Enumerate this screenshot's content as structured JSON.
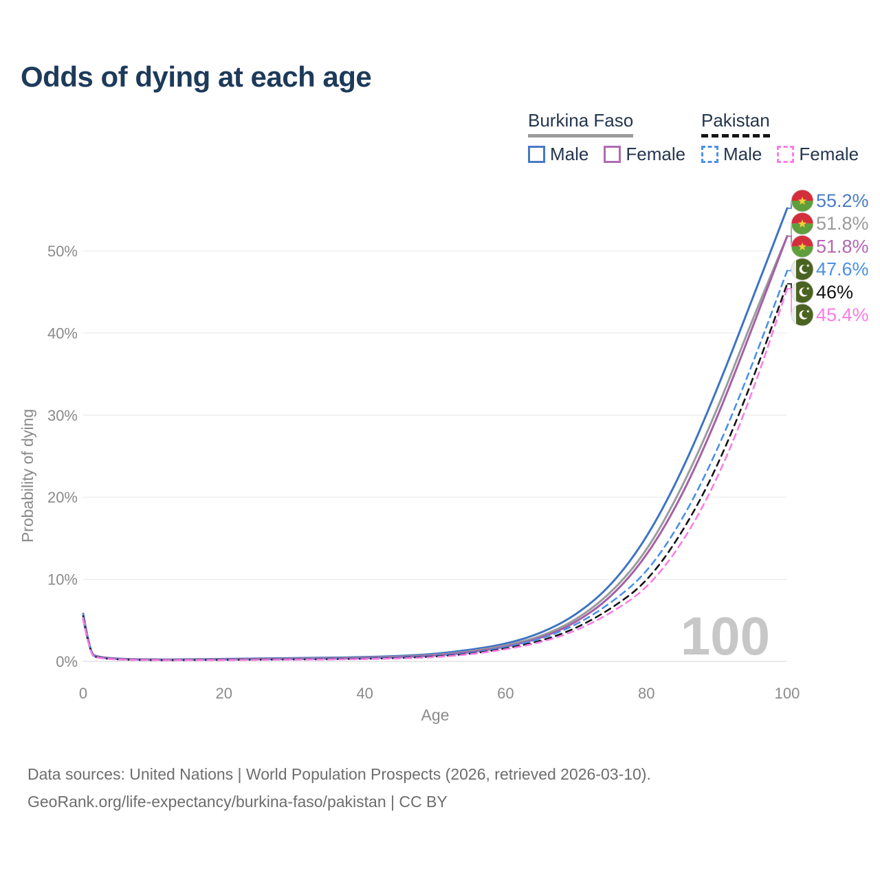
{
  "title": "Odds of dying at each age",
  "watermark_age": "100",
  "legend": {
    "groups": [
      {
        "name": "Burkina Faso",
        "line_style": "solid",
        "line_color": "#9b9b9b",
        "items": [
          {
            "label": "Male",
            "color": "#4779c4",
            "box_style": "solid"
          },
          {
            "label": "Female",
            "color": "#b26bb2",
            "box_style": "solid"
          }
        ]
      },
      {
        "name": "Pakistan",
        "line_style": "dashed",
        "line_color": "#151515",
        "items": [
          {
            "label": "Male",
            "color": "#4a90e8",
            "box_style": "dashed"
          },
          {
            "label": "Female",
            "color": "#fc7ce8",
            "box_style": "dashed"
          }
        ]
      }
    ]
  },
  "footer": {
    "line1": "Data sources: United Nations | World Population Prospects (2026, retrieved 2026-03-10).",
    "line2": "GeoRank.org/life-expectancy/burkina-faso/pakistan | CC BY"
  },
  "flags": {
    "burkina-faso": {
      "red": "#d42e3c",
      "green": "#5f9e3c",
      "star": "#f2ce3b"
    },
    "pakistan": {
      "green": "#4a6320",
      "strip": "#ededed",
      "crescent": "#ffffff"
    }
  },
  "chart_data": {
    "type": "line",
    "title": "Odds of dying at each age",
    "xlabel": "Age",
    "ylabel": "Probability of dying",
    "xlim": [
      0,
      100
    ],
    "ylim": [
      0,
      57
    ],
    "xticks": [
      0,
      20,
      40,
      60,
      80,
      100
    ],
    "yticks": [
      0,
      10,
      20,
      30,
      40,
      50
    ],
    "ytick_suffix": "%",
    "grid": true,
    "legend_position": "top-right",
    "x": [
      0,
      1,
      2,
      5,
      10,
      15,
      20,
      25,
      30,
      35,
      40,
      45,
      50,
      55,
      60,
      65,
      70,
      75,
      80,
      85,
      90,
      95,
      100
    ],
    "series": [
      {
        "id": "burkina-faso-male",
        "name": "Burkina Faso — Male",
        "flag": "burkina-faso",
        "color": "#3e74c2",
        "dash": false,
        "end_label": "55.2%",
        "label_color": "#4a7bc8",
        "values": [
          5.8,
          1.0,
          0.55,
          0.3,
          0.22,
          0.25,
          0.3,
          0.35,
          0.4,
          0.45,
          0.52,
          0.65,
          0.9,
          1.4,
          2.1,
          3.4,
          5.6,
          9.2,
          14.9,
          23,
          33,
          44,
          55.2
        ]
      },
      {
        "id": "burkina-faso-all",
        "name": "Burkina Faso — Both sexes",
        "flag": "burkina-faso",
        "color": "#9b9b9b",
        "dash": false,
        "end_label": "51.8%",
        "label_color": "#9b9b9b",
        "values": [
          5.5,
          0.95,
          0.52,
          0.28,
          0.2,
          0.22,
          0.27,
          0.3,
          0.34,
          0.39,
          0.45,
          0.56,
          0.78,
          1.2,
          1.9,
          3.0,
          5.0,
          8.3,
          13.3,
          21,
          30.5,
          41.5,
          51.8
        ]
      },
      {
        "id": "burkina-faso-female",
        "name": "Burkina Faso — Female",
        "flag": "burkina-faso",
        "color": "#a55fa8",
        "dash": false,
        "end_label": "51.8%",
        "label_color": "#b266b2",
        "values": [
          5.2,
          0.9,
          0.5,
          0.27,
          0.19,
          0.2,
          0.24,
          0.27,
          0.3,
          0.34,
          0.4,
          0.5,
          0.7,
          1.1,
          1.75,
          2.8,
          4.7,
          7.8,
          12.7,
          20,
          29.5,
          40.5,
          51.8
        ]
      },
      {
        "id": "pakistan-male",
        "name": "Pakistan — Male",
        "flag": "pakistan",
        "color": "#4a90e8",
        "dash": true,
        "end_label": "47.6%",
        "label_color": "#4a90e8",
        "values": [
          5.7,
          0.9,
          0.45,
          0.22,
          0.15,
          0.17,
          0.2,
          0.23,
          0.26,
          0.3,
          0.36,
          0.46,
          0.65,
          1.0,
          1.7,
          2.7,
          4.4,
          7.1,
          10.7,
          17,
          25.5,
          36,
          47.6
        ]
      },
      {
        "id": "pakistan-all",
        "name": "Pakistan — Both sexes",
        "flag": "pakistan",
        "color": "#151515",
        "dash": true,
        "end_label": "46%",
        "label_color": "#111111",
        "values": [
          5.5,
          0.85,
          0.43,
          0.21,
          0.14,
          0.15,
          0.18,
          0.2,
          0.23,
          0.26,
          0.31,
          0.4,
          0.57,
          0.9,
          1.55,
          2.45,
          4.0,
          6.4,
          9.6,
          15.5,
          23.5,
          34,
          46
        ]
      },
      {
        "id": "pakistan-female",
        "name": "Pakistan — Female",
        "flag": "pakistan",
        "color": "#fb7ce4",
        "dash": true,
        "end_label": "45.4%",
        "label_color": "#fb7ce4",
        "values": [
          5.3,
          0.8,
          0.4,
          0.2,
          0.13,
          0.14,
          0.16,
          0.18,
          0.2,
          0.23,
          0.28,
          0.36,
          0.5,
          0.85,
          1.45,
          2.3,
          3.7,
          5.9,
          8.8,
          14.2,
          22,
          32.5,
          45.4
        ]
      }
    ]
  }
}
